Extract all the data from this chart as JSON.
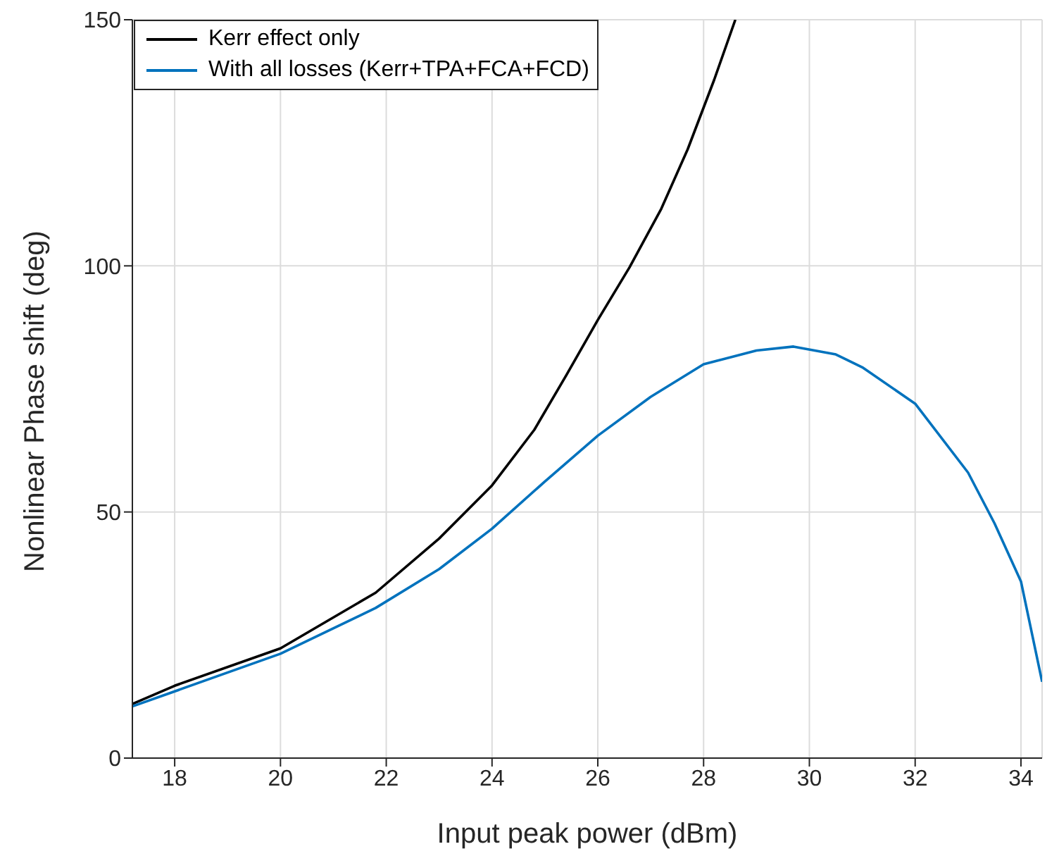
{
  "chart_data": {
    "type": "line",
    "xlabel": "Input peak power (dBm)",
    "ylabel": "Nonlinear Phase shift (deg)",
    "xlim": [
      17.2,
      34.4
    ],
    "xticks": [
      18,
      20,
      22,
      24,
      26,
      28,
      30,
      32,
      34
    ],
    "ylim": [
      0,
      150
    ],
    "yticks": [
      0,
      50,
      100,
      150
    ],
    "grid": true,
    "legend": "top left",
    "line_style": "solid",
    "marker": "none",
    "series": [
      {
        "name": "Kerr effect only",
        "color": "#000000",
        "x": [
          17.2,
          18,
          20,
          21.8,
          23,
          24,
          24.8,
          25.4,
          26,
          26.6,
          27.2,
          27.7,
          28.2,
          28.6
        ],
        "values": [
          11,
          14.7,
          22.3,
          33.6,
          44.6,
          55.4,
          66.7,
          77.7,
          89,
          99.7,
          111.6,
          123.7,
          137.8,
          150
        ]
      },
      {
        "name": "With all losses (Kerr+TPA+FCA+FCD)",
        "color": "#0072bd",
        "x": [
          17.2,
          20,
          21.8,
          23,
          24,
          25,
          26,
          27,
          28,
          29,
          29.7,
          30.5,
          31,
          32,
          33,
          33.5,
          34,
          34.4
        ],
        "values": [
          10.5,
          21.2,
          30.5,
          38.4,
          46.6,
          56.2,
          65.5,
          73.4,
          80,
          82.8,
          83.6,
          82,
          79.4,
          72,
          58,
          47.7,
          35.9,
          15.5
        ]
      }
    ]
  }
}
